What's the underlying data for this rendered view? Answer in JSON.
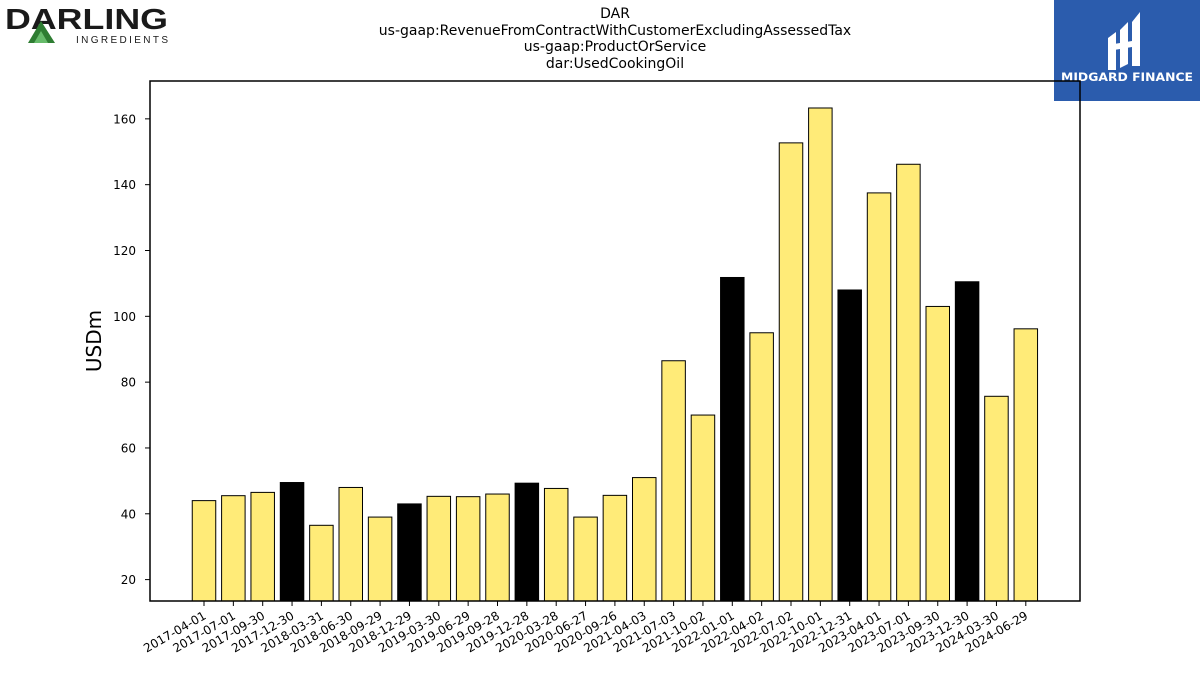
{
  "logos": {
    "company_wordmark": "DARLING",
    "company_sub": "INGREDIENTS",
    "brand_name": "MIDGARD FINANCE",
    "brand_color": "#2b5cad"
  },
  "chart_data": {
    "type": "bar",
    "title_lines": [
      "DAR",
      "us-gaap:RevenueFromContractWithCustomerExcludingAssessedTax",
      "us-gaap:ProductOrService",
      "dar:UsedCookingOil"
    ],
    "xlabel": "",
    "ylabel": "USDm",
    "ylim": [
      13.5,
      171.5
    ],
    "yticks": [
      20,
      40,
      60,
      80,
      100,
      120,
      140,
      160
    ],
    "grid": false,
    "colors": {
      "quarter": "#ffeb78",
      "year_end": "#000000",
      "edge": "#000000"
    },
    "categories": [
      "2017-04-01",
      "2017-07-01",
      "2017-09-30",
      "2017-12-30",
      "2018-03-31",
      "2018-06-30",
      "2018-09-29",
      "2018-12-29",
      "2019-03-30",
      "2019-06-29",
      "2019-09-28",
      "2019-12-28",
      "2020-03-28",
      "2020-06-27",
      "2020-09-26",
      "2021-04-03",
      "2021-07-03",
      "2021-10-02",
      "2022-01-01",
      "2022-04-02",
      "2022-07-02",
      "2022-10-01",
      "2022-12-31",
      "2023-04-01",
      "2023-07-01",
      "2023-09-30",
      "2023-12-30",
      "2024-03-30",
      "2024-06-29"
    ],
    "values": [
      44.0,
      45.5,
      46.5,
      49.5,
      36.5,
      48.0,
      39.0,
      43.0,
      45.3,
      45.2,
      46.0,
      49.3,
      47.7,
      39.0,
      45.6,
      51.0,
      86.5,
      70.0,
      111.8,
      95.0,
      152.7,
      163.3,
      108.0,
      137.5,
      146.2,
      103.0,
      110.5,
      75.7,
      96.2
    ],
    "year_end_flags": [
      false,
      false,
      false,
      true,
      false,
      false,
      false,
      true,
      false,
      false,
      false,
      true,
      false,
      false,
      false,
      false,
      false,
      false,
      true,
      false,
      false,
      false,
      true,
      false,
      false,
      false,
      true,
      false,
      false
    ]
  }
}
